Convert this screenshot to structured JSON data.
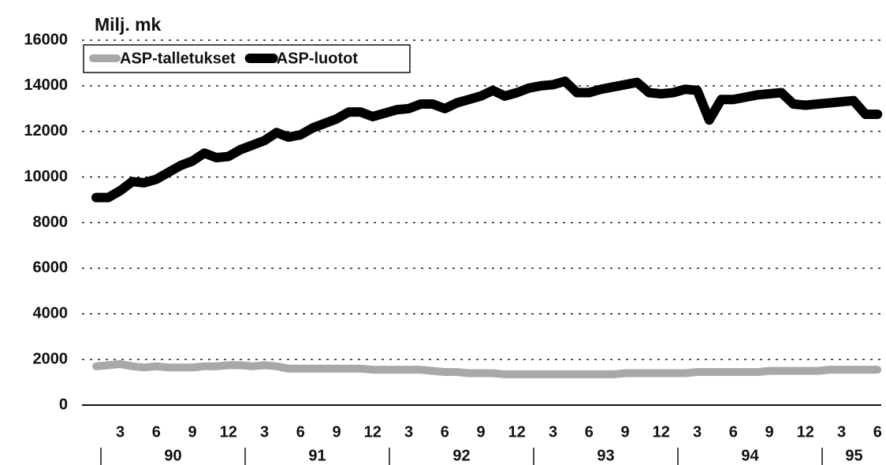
{
  "chart_data": {
    "type": "line",
    "title": "Milj. mk",
    "categories": [
      null,
      null,
      "3",
      null,
      null,
      "6",
      null,
      null,
      "9",
      null,
      null,
      "12",
      null,
      null,
      "3",
      null,
      null,
      "6",
      null,
      null,
      "9",
      null,
      null,
      "12",
      null,
      null,
      "3",
      null,
      null,
      "6",
      null,
      null,
      "9",
      null,
      null,
      "12",
      null,
      null,
      "3",
      null,
      null,
      "6",
      null,
      null,
      "9",
      null,
      null,
      "12",
      null,
      null,
      "3",
      null,
      null,
      "6",
      null,
      null,
      "9",
      null,
      null,
      "12",
      null,
      null,
      "3",
      null,
      null,
      "6"
    ],
    "x_groups": [
      "90",
      "91",
      "92",
      "93",
      "94",
      "95"
    ],
    "series": [
      {
        "name": "ASP-talletukset",
        "color": "#a8a8a8",
        "values": [
          1700,
          1750,
          1800,
          1700,
          1650,
          1700,
          1650,
          1650,
          1650,
          1700,
          1700,
          1750,
          1750,
          1700,
          1750,
          1700,
          1600,
          1600,
          1600,
          1600,
          1600,
          1600,
          1600,
          1550,
          1550,
          1550,
          1550,
          1550,
          1500,
          1450,
          1450,
          1400,
          1400,
          1400,
          1350,
          1350,
          1350,
          1350,
          1350,
          1350,
          1350,
          1350,
          1350,
          1350,
          1400,
          1400,
          1400,
          1400,
          1400,
          1400,
          1450,
          1450,
          1450,
          1450,
          1450,
          1450,
          1500,
          1500,
          1500,
          1500,
          1500,
          1550,
          1550,
          1550,
          1550,
          1550
        ]
      },
      {
        "name": "ASP-luotot",
        "color": "#000000",
        "values": [
          9100,
          9100,
          9400,
          9800,
          9750,
          9900,
          10200,
          10500,
          10700,
          11050,
          10850,
          10900,
          11200,
          11400,
          11600,
          11950,
          11750,
          11850,
          12150,
          12350,
          12550,
          12850,
          12850,
          12650,
          12800,
          12950,
          13000,
          13200,
          13200,
          13000,
          13250,
          13400,
          13550,
          13800,
          13550,
          13700,
          13900,
          14000,
          14050,
          14200,
          13700,
          13700,
          13850,
          13950,
          14050,
          14150,
          13700,
          13650,
          13700,
          13850,
          13800,
          12500,
          13400,
          13400,
          13500,
          13600,
          13650,
          13700,
          13200,
          13150,
          13200,
          13250,
          13300,
          13350,
          12750,
          12750
        ]
      }
    ],
    "ylim": [
      0,
      16000
    ],
    "yticks": [
      0,
      2000,
      4000,
      6000,
      8000,
      10000,
      12000,
      14000,
      16000
    ],
    "grid": true,
    "legend": "upper left"
  }
}
